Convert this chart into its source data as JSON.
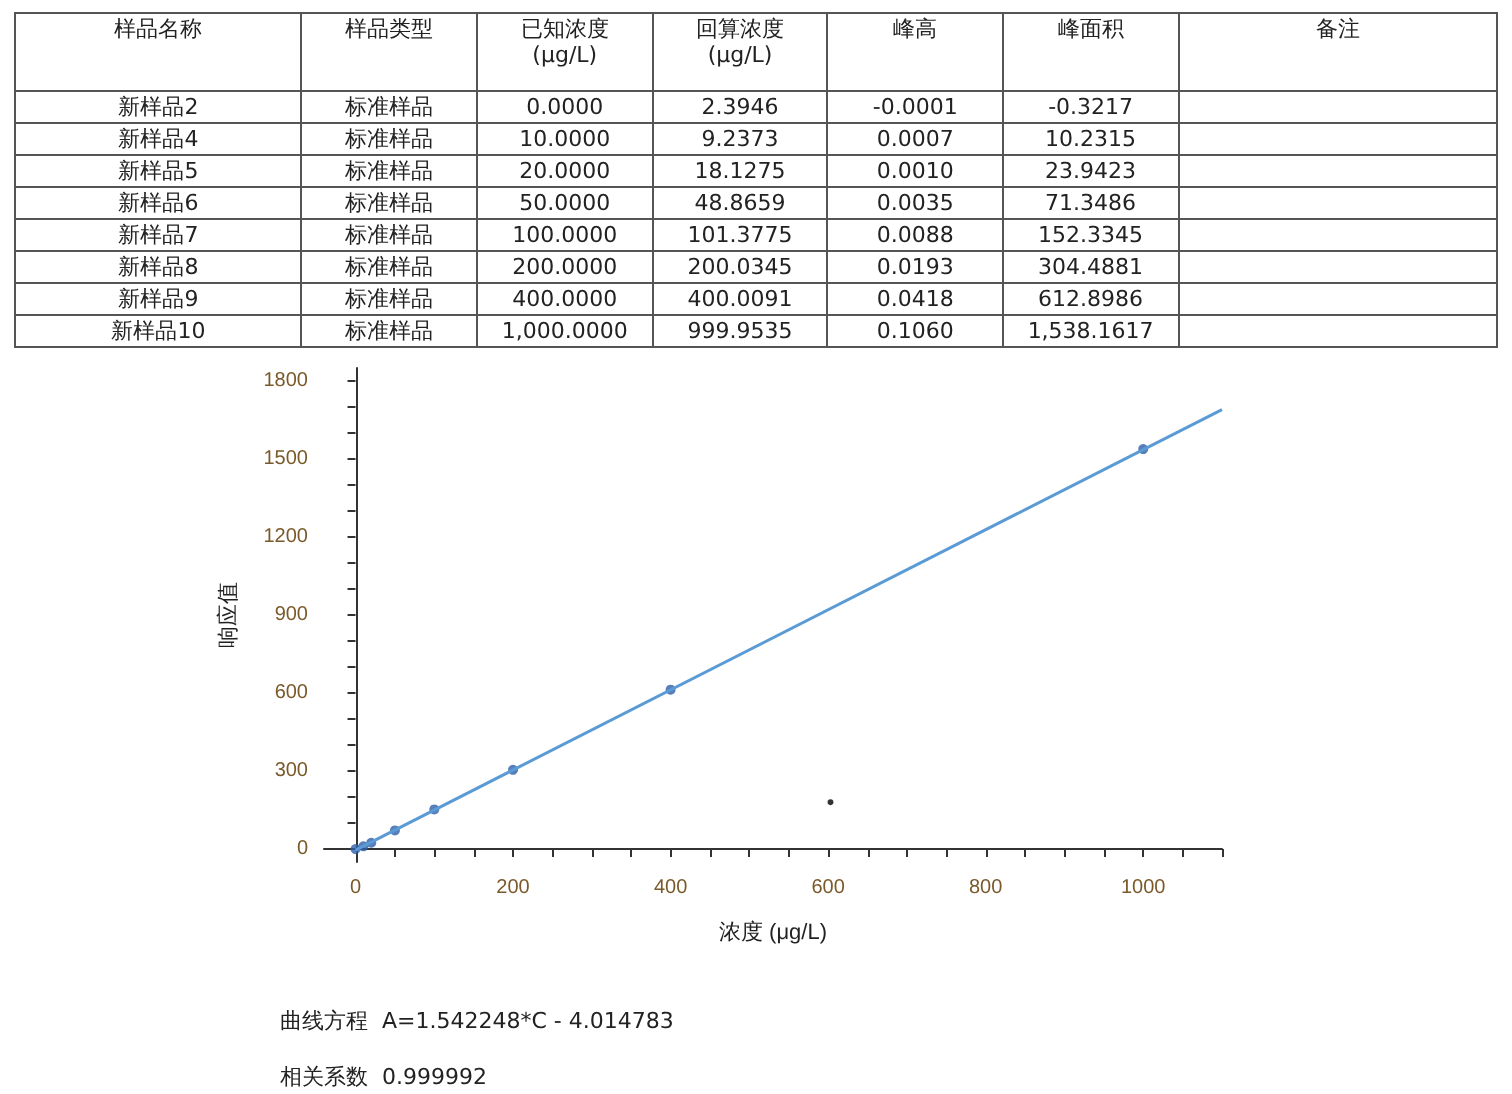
{
  "chart_data": [
    {
      "type": "other",
      "categories": [
        "样品名称",
        "样品类型",
        "已知浓度\n(μg/L)",
        "回算浓度\n(μg/L)",
        "峰高",
        "峰面积",
        "备注"
      ],
      "cell_labels": [
        [
          "新样品2",
          "标准样品",
          "0.0000",
          "2.3946",
          "-0.0001",
          "-0.3217",
          null
        ],
        [
          "新样品4",
          "标准样品",
          "10.0000",
          "9.2373",
          "0.0007",
          "10.2315",
          null
        ],
        [
          "新样品5",
          "标准样品",
          "20.0000",
          "18.1275",
          "0.0010",
          "23.9423",
          null
        ],
        [
          "新样品6",
          "标准样品",
          "50.0000",
          "48.8659",
          "0.0035",
          "71.3486",
          null
        ],
        [
          "新样品7",
          "标准样品",
          "100.0000",
          "101.3775",
          "0.0088",
          "152.3345",
          null
        ],
        [
          "新样品8",
          "标准样品",
          "200.0000",
          "200.0345",
          "0.0193",
          "304.4881",
          null
        ],
        [
          "新样品9",
          "标准样品",
          "400.0000",
          "400.0091",
          "0.0418",
          "612.8986",
          null
        ],
        [
          "新样品10",
          "标准样品",
          "1,000.0000",
          "999.9535",
          "0.1060",
          "1,538.1617",
          null
        ]
      ]
    },
    {
      "type": "scatter",
      "xlabel": "浓度 (μg/L)",
      "ylabel": "响应值",
      "xlim": [
        -40,
        1100
      ],
      "ylim": [
        -50,
        1850
      ],
      "xticks": [
        0,
        {
          "value": 50,
          "label": null
        },
        {
          "value": 100,
          "label": null
        },
        {
          "value": 150,
          "label": null
        },
        200,
        {
          "value": 250,
          "label": null
        },
        {
          "value": 300,
          "label": null
        },
        {
          "value": 350,
          "label": null
        },
        400,
        {
          "value": 450,
          "label": null
        },
        {
          "value": 500,
          "label": null
        },
        {
          "value": 550,
          "label": null
        },
        600,
        {
          "value": 650,
          "label": null
        },
        {
          "value": 700,
          "label": null
        },
        {
          "value": 750,
          "label": null
        },
        800,
        {
          "value": 850,
          "label": null
        },
        {
          "value": 900,
          "label": null
        },
        {
          "value": 950,
          "label": null
        },
        1000,
        {
          "value": 1050,
          "label": null
        },
        {
          "value": 1100,
          "label": null
        }
      ],
      "yticks": [
        0,
        {
          "value": 100,
          "label": null
        },
        {
          "value": 200,
          "label": null
        },
        300,
        {
          "value": 400,
          "label": null
        },
        {
          "value": 500,
          "label": null
        },
        600,
        {
          "value": 700,
          "label": null
        },
        {
          "value": 800,
          "label": null
        },
        900,
        {
          "value": 1000,
          "label": null
        },
        {
          "value": 1100,
          "label": null
        },
        1200,
        {
          "value": 1300,
          "label": null
        },
        {
          "value": 1400,
          "label": null
        },
        1500,
        {
          "value": 1600,
          "label": null
        },
        {
          "value": 1700,
          "label": null
        },
        1800
      ],
      "grid": false,
      "line_style": "solid",
      "series": [
        {
          "type": "line",
          "color": "#5b9bd5",
          "marker": "none",
          "x": [
            0,
            1100
          ],
          "values": [
            -4,
            1690
          ]
        },
        {
          "type": "scatter",
          "color": "#2e5fa8",
          "marker": "circle",
          "x": [
            0,
            10,
            20,
            50,
            100,
            200,
            400,
            1000
          ],
          "values": [
            -0.3217,
            10.2315,
            23.9423,
            71.3486,
            152.3345,
            304.4881,
            612.8986,
            1538.1617
          ]
        },
        {
          "type": "scatter",
          "color": "#000000",
          "marker": "circle",
          "x": [
            603
          ],
          "values": [
            180
          ]
        }
      ],
      "annotations": [
        "曲线方程  A=1.542248*C - 4.014783",
        "相关系数  0.999992"
      ]
    }
  ]
}
